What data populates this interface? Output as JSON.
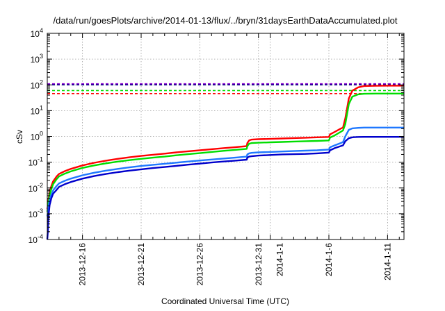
{
  "chart_data": {
    "type": "line",
    "title": "/data/run/goesPlots/archive/2014-01-13/flux/../bryn/31daysEarthDataAccumulated.plot",
    "xlabel": "Coordinated Universal Time (UTC)",
    "ylabel": "cSv",
    "yscale": "log",
    "ylim": [
      0.0001,
      10000
    ],
    "xlim": [
      13.0,
      43.4
    ],
    "grid": true,
    "y_ticks": [
      {
        "value": 0.0001,
        "base": "10",
        "exp": "-4"
      },
      {
        "value": 0.001,
        "base": "10",
        "exp": "-3"
      },
      {
        "value": 0.01,
        "base": "10",
        "exp": "-2"
      },
      {
        "value": 0.1,
        "base": "10",
        "exp": "-1"
      },
      {
        "value": 1,
        "base": "10",
        "exp": "0"
      },
      {
        "value": 10,
        "base": "10",
        "exp": "1"
      },
      {
        "value": 100,
        "base": "10",
        "exp": "2"
      },
      {
        "value": 1000,
        "base": "10",
        "exp": "3"
      },
      {
        "value": 10000,
        "base": "10",
        "exp": "4"
      }
    ],
    "x_ticks": [
      {
        "x": 16,
        "label": "2013-12-16"
      },
      {
        "x": 21,
        "label": "2013-12-21"
      },
      {
        "x": 26,
        "label": "2013-12-26"
      },
      {
        "x": 31,
        "label": "2013-12-31"
      },
      {
        "x": 32,
        "label": "2014-1-1"
      },
      {
        "x": 37,
        "label": "2014-1-6"
      },
      {
        "x": 42,
        "label": "2014-1-11"
      }
    ],
    "series": [
      {
        "color": "#ff0000",
        "x": [
          13.0,
          13.05,
          13.1,
          13.2,
          13.35,
          13.5,
          13.8,
          14,
          14.5,
          15,
          16,
          17,
          18,
          19,
          20,
          21,
          22,
          23,
          24,
          25,
          26,
          27,
          28,
          29,
          30,
          30.05,
          30.2,
          30.4,
          31,
          32,
          33,
          34,
          35,
          36,
          37,
          37.1,
          37.5,
          38,
          38.2,
          38.4,
          38.7,
          39,
          39.5,
          40,
          41,
          42,
          43,
          43.4
        ],
        "y": [
          0.0015,
          0.002,
          0.0035,
          0.007,
          0.012,
          0.018,
          0.028,
          0.035,
          0.045,
          0.055,
          0.075,
          0.095,
          0.115,
          0.135,
          0.155,
          0.175,
          0.195,
          0.215,
          0.24,
          0.265,
          0.29,
          0.32,
          0.35,
          0.38,
          0.42,
          0.55,
          0.7,
          0.75,
          0.78,
          0.8,
          0.83,
          0.86,
          0.89,
          0.92,
          0.95,
          1.2,
          1.5,
          2.0,
          2.2,
          5.0,
          30.0,
          60.0,
          80.0,
          90.0,
          92.0,
          93.0,
          93.0,
          93.0
        ]
      },
      {
        "color": "#00dd00",
        "x": [
          13.0,
          13.05,
          13.1,
          13.2,
          13.35,
          13.5,
          13.8,
          14,
          14.5,
          15,
          16,
          17,
          18,
          19,
          20,
          21,
          22,
          23,
          24,
          25,
          26,
          27,
          28,
          29,
          30,
          30.05,
          30.2,
          30.4,
          31,
          32,
          33,
          34,
          35,
          36,
          37,
          37.1,
          37.5,
          38,
          38.2,
          38.4,
          38.7,
          39,
          39.5,
          40,
          41,
          42,
          43,
          43.4
        ],
        "y": [
          0.0012,
          0.0016,
          0.0028,
          0.0055,
          0.009,
          0.014,
          0.022,
          0.028,
          0.036,
          0.044,
          0.06,
          0.075,
          0.09,
          0.105,
          0.12,
          0.135,
          0.15,
          0.165,
          0.185,
          0.205,
          0.225,
          0.25,
          0.275,
          0.3,
          0.33,
          0.42,
          0.52,
          0.55,
          0.57,
          0.59,
          0.61,
          0.63,
          0.65,
          0.67,
          0.7,
          0.9,
          1.1,
          1.5,
          1.7,
          3.0,
          18.0,
          35.0,
          43.0,
          45.0,
          46.0,
          46.0,
          46.0,
          46.0
        ]
      },
      {
        "color": "#1f78ff",
        "x": [
          13.0,
          13.05,
          13.1,
          13.2,
          13.35,
          13.5,
          13.8,
          14,
          14.5,
          15,
          16,
          17,
          18,
          19,
          20,
          21,
          22,
          23,
          24,
          25,
          26,
          27,
          28,
          29,
          30,
          30.05,
          30.2,
          30.4,
          31,
          32,
          33,
          34,
          35,
          36,
          37,
          37.1,
          37.5,
          38,
          38.2,
          38.4,
          38.7,
          39,
          39.5,
          40,
          41,
          42,
          43,
          43.4
        ],
        "y": [
          0.0008,
          0.0011,
          0.0018,
          0.0035,
          0.0055,
          0.008,
          0.012,
          0.015,
          0.019,
          0.023,
          0.031,
          0.039,
          0.047,
          0.055,
          0.063,
          0.071,
          0.079,
          0.087,
          0.096,
          0.106,
          0.116,
          0.127,
          0.138,
          0.15,
          0.165,
          0.2,
          0.22,
          0.23,
          0.24,
          0.25,
          0.26,
          0.27,
          0.28,
          0.29,
          0.31,
          0.38,
          0.45,
          0.55,
          0.6,
          1.0,
          1.8,
          2.05,
          2.15,
          2.2,
          2.2,
          2.2,
          2.2,
          2.2
        ]
      },
      {
        "color": "#0000cc",
        "x": [
          13.0,
          13.05,
          13.1,
          13.2,
          13.35,
          13.5,
          13.8,
          14,
          14.5,
          15,
          16,
          17,
          18,
          19,
          20,
          21,
          22,
          23,
          24,
          25,
          26,
          27,
          28,
          29,
          30,
          30.05,
          30.2,
          30.4,
          31,
          32,
          33,
          34,
          35,
          36,
          37,
          37.1,
          37.5,
          38,
          38.2,
          38.4,
          38.7,
          39,
          39.5,
          40,
          41,
          42,
          43,
          43.4
        ],
        "y": [
          0.0001,
          0.0002,
          0.0008,
          0.0022,
          0.004,
          0.006,
          0.0085,
          0.011,
          0.014,
          0.017,
          0.023,
          0.029,
          0.035,
          0.041,
          0.047,
          0.053,
          0.059,
          0.065,
          0.072,
          0.08,
          0.088,
          0.097,
          0.106,
          0.115,
          0.125,
          0.15,
          0.165,
          0.17,
          0.18,
          0.19,
          0.2,
          0.205,
          0.21,
          0.22,
          0.235,
          0.29,
          0.35,
          0.42,
          0.45,
          0.65,
          0.85,
          0.92,
          0.95,
          0.96,
          0.96,
          0.96,
          0.96,
          0.96
        ]
      }
    ],
    "reference_lines": [
      {
        "y": 110,
        "color": "#8800cc"
      },
      {
        "y": 100,
        "color": "#000080"
      },
      {
        "y": 60,
        "color": "#00dd00"
      },
      {
        "y": 46,
        "color": "#ff0000"
      }
    ]
  }
}
